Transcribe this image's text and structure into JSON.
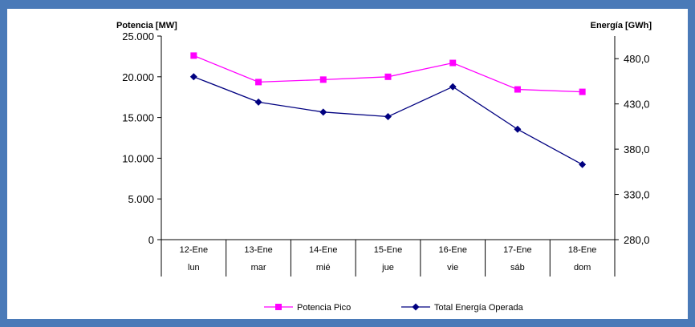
{
  "chart_data": {
    "type": "line",
    "left_axis_title": "Potencia [MW]",
    "right_axis_title": "Energía [GWh]",
    "categories": [
      "12-Ene",
      "13-Ene",
      "14-Ene",
      "15-Ene",
      "16-Ene",
      "17-Ene",
      "18-Ene"
    ],
    "categories_day": [
      "lun",
      "mar",
      "mié",
      "jue",
      "vie",
      "sáb",
      "dom"
    ],
    "y_left": {
      "lim": [
        0,
        25000
      ],
      "ticks": [
        0,
        5000,
        10000,
        15000,
        20000,
        25000
      ],
      "tick_labels": [
        "0",
        "5.000",
        "10.000",
        "15.000",
        "20.000",
        "25.000"
      ]
    },
    "y_right": {
      "lim": [
        280,
        505
      ],
      "ticks": [
        280,
        330,
        380,
        430,
        480
      ],
      "tick_labels": [
        "280,0",
        "330,0",
        "380,0",
        "430,0",
        "480,0"
      ]
    },
    "series": [
      {
        "name": "Potencia Pico",
        "axis": "left",
        "color": "#ff00ff",
        "marker": "square",
        "values": [
          22600,
          19350,
          19650,
          20000,
          21700,
          18450,
          18150
        ]
      },
      {
        "name": "Total Energía Operada",
        "axis": "right",
        "color": "#000080",
        "marker": "diamond",
        "values": [
          460,
          432,
          421,
          416,
          449,
          402,
          363
        ]
      }
    ],
    "legend_position": "bottom"
  }
}
